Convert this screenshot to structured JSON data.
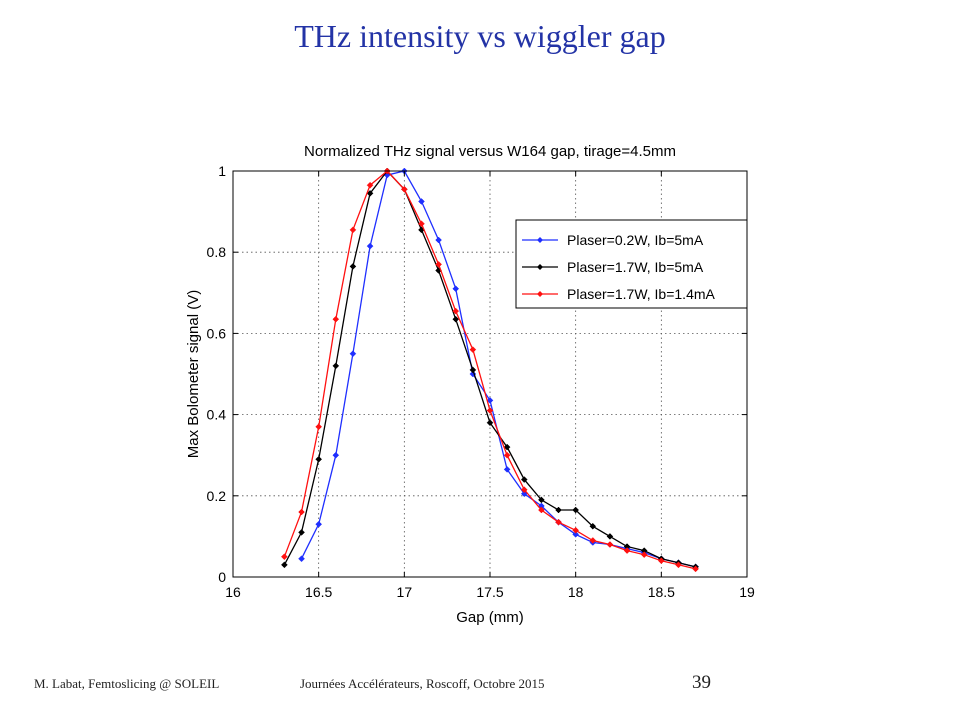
{
  "slide": {
    "title": "THz intensity vs wiggler gap",
    "footer_left": "M. Labat, Femtoslicing @ SOLEIL",
    "footer_center": "Journées Accélérateurs, Roscoff, Octobre 2015",
    "page_number": "39"
  },
  "chart_data": {
    "type": "line",
    "title": "Normalized THz signal versus W164 gap, tirage=4.5mm",
    "xlabel": "Gap (mm)",
    "ylabel": "Max Bolometer signal (V)",
    "xlim": [
      16,
      19
    ],
    "ylim": [
      0,
      1
    ],
    "xticks": [
      "16",
      "16.5",
      "17",
      "17.5",
      "18",
      "18.5",
      "19"
    ],
    "yticks": [
      "0",
      "0.2",
      "0.4",
      "0.6",
      "0.8",
      "1"
    ],
    "grid": true,
    "legend_position": "upper-right",
    "series": [
      {
        "name": "Plaser=0.2W, Ib=5mA",
        "color": "#1f2fff",
        "x": [
          16.4,
          16.5,
          16.6,
          16.7,
          16.8,
          16.9,
          17.0,
          17.1,
          17.2,
          17.3,
          17.4,
          17.5,
          17.6,
          17.7,
          17.8,
          17.9,
          18.0,
          18.1,
          18.2,
          18.3,
          18.4,
          18.5,
          18.6,
          18.7
        ],
        "y": [
          0.045,
          0.13,
          0.3,
          0.55,
          0.815,
          0.99,
          1.0,
          0.925,
          0.83,
          0.71,
          0.5,
          0.435,
          0.265,
          0.205,
          0.175,
          0.135,
          0.105,
          0.085,
          0.08,
          0.07,
          0.06,
          0.045,
          0.035,
          0.025
        ]
      },
      {
        "name": "Plaser=1.7W, Ib=5mA",
        "color": "#000000",
        "x": [
          16.3,
          16.4,
          16.5,
          16.6,
          16.7,
          16.8,
          16.9,
          17.0,
          17.1,
          17.2,
          17.3,
          17.4,
          17.5,
          17.6,
          17.7,
          17.8,
          17.9,
          18.0,
          18.1,
          18.2,
          18.3,
          18.4,
          18.5,
          18.6,
          18.7
        ],
        "y": [
          0.03,
          0.11,
          0.29,
          0.52,
          0.765,
          0.945,
          1.0,
          0.955,
          0.855,
          0.755,
          0.635,
          0.51,
          0.38,
          0.32,
          0.24,
          0.19,
          0.165,
          0.165,
          0.125,
          0.1,
          0.075,
          0.065,
          0.045,
          0.035,
          0.025
        ]
      },
      {
        "name": "Plaser=1.7W, Ib=1.4mA",
        "color": "#ff1010",
        "x": [
          16.3,
          16.4,
          16.5,
          16.6,
          16.7,
          16.8,
          16.9,
          17.0,
          17.1,
          17.2,
          17.3,
          17.4,
          17.5,
          17.6,
          17.7,
          17.8,
          17.9,
          18.0,
          18.1,
          18.2,
          18.3,
          18.4,
          18.5,
          18.6,
          18.7
        ],
        "y": [
          0.05,
          0.16,
          0.37,
          0.635,
          0.855,
          0.965,
          1.0,
          0.955,
          0.87,
          0.77,
          0.655,
          0.56,
          0.41,
          0.3,
          0.215,
          0.165,
          0.135,
          0.115,
          0.09,
          0.08,
          0.065,
          0.055,
          0.04,
          0.03,
          0.02
        ]
      }
    ]
  }
}
